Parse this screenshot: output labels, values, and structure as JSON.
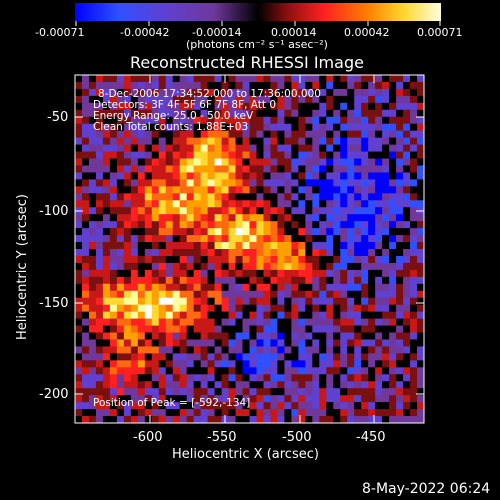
{
  "colorbar": {
    "ticks": [
      "-0.00071",
      "-0.00042",
      "-0.00014",
      "0.00014",
      "0.00042",
      "0.00071"
    ],
    "units": "(photons cm⁻² s⁻¹ asec⁻²)"
  },
  "image": {
    "title": "Reconstructed RHESSI Image",
    "overlay": [
      "8-Dec-2006 17:34:52.000 to 17:36:00.000",
      "Detectors: 3F 4F 5F 6F 7F 8F, Att 0",
      "Energy Range: 25.0 - 50.0 keV",
      "Clean    Total counts: 1.88E+03"
    ],
    "peak": "Position of Peak = [-592,-134]"
  },
  "axes": {
    "xlabel": "Heliocentric X (arcsec)",
    "ylabel": "Heliocentric Y (arcsec)",
    "xticks": [
      "-600",
      "-550",
      "-500",
      "-450"
    ],
    "yticks": [
      "-50",
      "-100",
      "-150",
      "-200"
    ]
  },
  "footer": {
    "timestamp": "8-May-2022 06:24"
  },
  "colors": {
    "colormap": [
      "#0000ff",
      "#3050ff",
      "#6040d0",
      "#70389a",
      "#000000",
      "#7a1010",
      "#c81818",
      "#ff2020",
      "#ff6a10",
      "#ffa000",
      "#ffd830",
      "#ffffa0",
      "#ffffff"
    ]
  }
}
